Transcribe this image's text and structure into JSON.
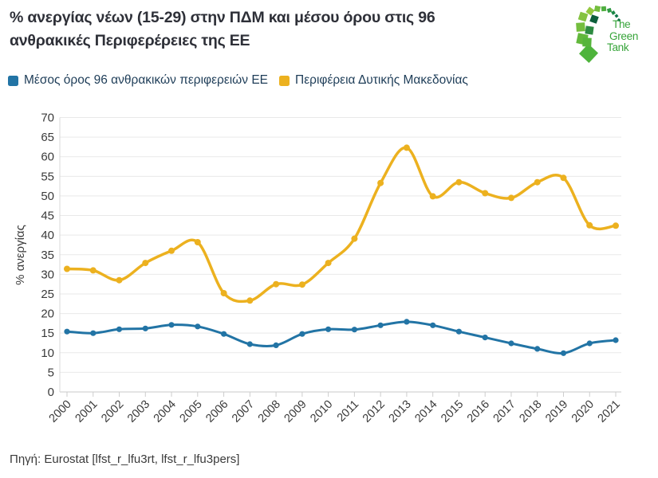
{
  "header": {
    "title_line1": "% ανεργίας νέων (15-29) στην ΠΔΜ και μέσου όρου στις 96",
    "title_line2": "ανθρακικές Περιφερέρειες της ΕΕ",
    "logo": {
      "line1": "The",
      "line2": "Green",
      "line3": "Tank"
    }
  },
  "legend": [
    {
      "label": "Μέσος όρος 96 ανθρακικών περιφερειών ΕΕ",
      "color": "#2274a5"
    },
    {
      "label": "Περιφέρεια Δυτικής Μακεδονίας",
      "color": "#ecb11f"
    }
  ],
  "footer": {
    "source": "Πηγή: Eurostat [lfst_r_lfu3rt, lfst_r_lfu3pers]"
  },
  "colors": {
    "blue_series": "#2274a5",
    "yellow_series": "#ecb11f",
    "grid": "#e9e9e9",
    "axis": "#c9c9c9",
    "tick_text": "#3a3a3a",
    "logo_green": "#37a43a"
  },
  "chart_data": {
    "type": "line",
    "title": "% ανεργίας νέων (15-29) στην ΠΔΜ και μέσου όρου στις 96 ανθρακικές Περιφερέρειες της ΕΕ",
    "xlabel": "",
    "ylabel": "% ανεργίας",
    "ylim": [
      0,
      70
    ],
    "ytick_step": 5,
    "grid": true,
    "legend_position": "top-left",
    "marker": "circle",
    "smooth": true,
    "categories": [
      "2000",
      "2001",
      "2002",
      "2003",
      "2004",
      "2005",
      "2006",
      "2007",
      "2008",
      "2009",
      "2010",
      "2011",
      "2012",
      "2013",
      "2014",
      "2015",
      "2016",
      "2017",
      "2018",
      "2019",
      "2020",
      "2021"
    ],
    "series": [
      {
        "name": "Μέσος όρος 96 ανθρακικών περιφερειών ΕΕ",
        "color": "#2274a5",
        "values": [
          15.4,
          15.0,
          16.0,
          16.2,
          17.1,
          16.7,
          14.8,
          12.2,
          11.9,
          14.8,
          16.0,
          15.9,
          17.0,
          17.9,
          17.0,
          15.4,
          13.9,
          12.4,
          11.0,
          9.9,
          12.4,
          13.2
        ]
      },
      {
        "name": "Περιφέρεια Δυτικής Μακεδονίας",
        "color": "#ecb11f",
        "values": [
          31.4,
          31.0,
          28.5,
          32.9,
          36.0,
          38.2,
          25.2,
          23.3,
          27.5,
          27.4,
          32.9,
          39.1,
          53.3,
          62.3,
          49.9,
          53.5,
          50.7,
          49.5,
          53.5,
          54.6,
          42.5,
          42.4
        ]
      }
    ]
  }
}
